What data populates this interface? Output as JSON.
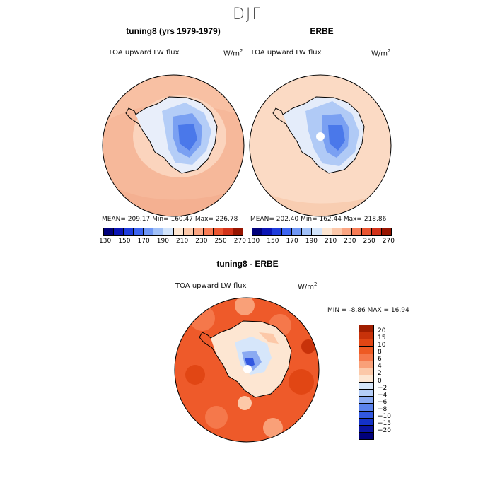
{
  "title": "DJF",
  "panels": [
    {
      "title": "tuning8 (yrs 1979-1979)",
      "variable": "TOA upward LW flux",
      "units": "W/m",
      "units_exp": "2",
      "stats": "MEAN=  209.17   Min=  160.47   Max=  226.78"
    },
    {
      "title": "ERBE",
      "variable": "TOA upward LW flux",
      "units": "W/m",
      "units_exp": "2",
      "stats": "MEAN=  202.40   Min=  162.44   Max=  218.86"
    },
    {
      "title": "tuning8 - ERBE",
      "variable": "TOA upward LW flux",
      "units": "W/m",
      "units_exp": "2",
      "stats": "MIN =   -8.86  MAX =   16.94"
    }
  ],
  "colorbar_top": {
    "colors": [
      "#00007a",
      "#0a14b4",
      "#1e3cdc",
      "#3c64f0",
      "#6e96f5",
      "#a0c0f8",
      "#d2e4fb",
      "#fde6d2",
      "#fcc8aa",
      "#fba582",
      "#f77c55",
      "#ea5530",
      "#d23219",
      "#961400"
    ],
    "labels": [
      "130",
      "150",
      "170",
      "190",
      "210",
      "230",
      "250",
      "270"
    ]
  },
  "colorbar_diff": {
    "colors": [
      "#a01e00",
      "#c8320a",
      "#e14614",
      "#ee5a23",
      "#f5784b",
      "#f9a078",
      "#fcc8a8",
      "#fde6d2",
      "#d6e6fa",
      "#b4cdf7",
      "#8aaaf2",
      "#5a82ec",
      "#3258e0",
      "#1432c8",
      "#0a14a0",
      "#00007a"
    ],
    "labels": [
      "20",
      "15",
      "10",
      "8",
      "6",
      "4",
      "2",
      "0",
      "−2",
      "−4",
      "−6",
      "−8",
      "−10",
      "−15",
      "−20"
    ]
  },
  "colors": {
    "ocean_model": "#f6b89a",
    "ocean_erbe": "#fbdac4",
    "diff_ocean": "#ee5a2a"
  }
}
